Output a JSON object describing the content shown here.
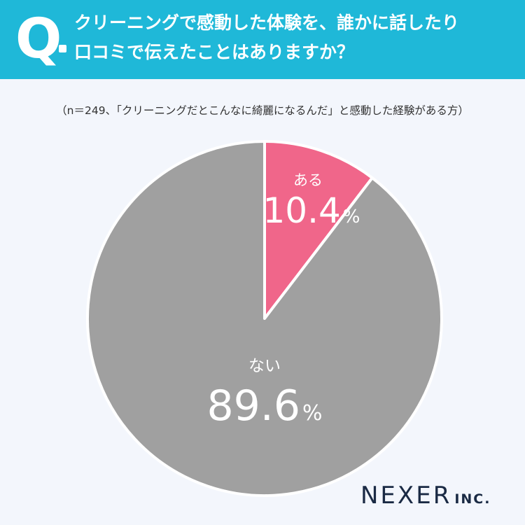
{
  "header": {
    "q_letter": "Q",
    "question_line1": "クリーニングで感動した体験を、誰かに話したり",
    "question_line2": "口コミで伝えたことはありますか？"
  },
  "note": "（n＝249、「クリーニングだとこんなに綺麗になるんだ」と感動した経験がある方）",
  "chart_data": {
    "type": "pie",
    "title": "",
    "slices": [
      {
        "label": "ある",
        "value": 10.4,
        "display": "10.4",
        "unit": "%",
        "color": "#f0668a"
      },
      {
        "label": "ない",
        "value": 89.6,
        "display": "89.6",
        "unit": "%",
        "color": "#a0a0a0"
      }
    ],
    "start": "top",
    "direction": "clockwise"
  },
  "logo": {
    "main": "NEXER",
    "sub": "INC."
  }
}
